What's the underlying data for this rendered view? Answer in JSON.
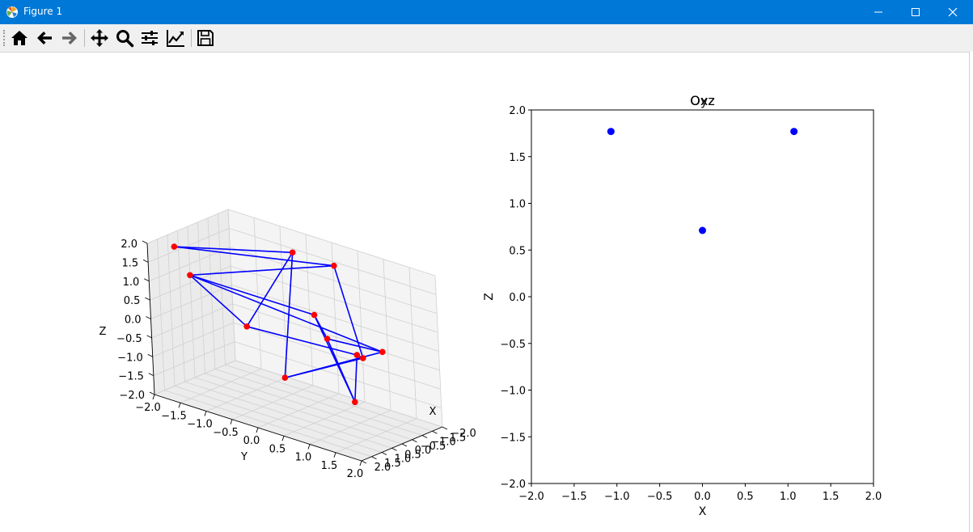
{
  "window": {
    "title": "Figure 1",
    "controls": [
      "minimize",
      "maximize",
      "close"
    ]
  },
  "toolbar": {
    "items": [
      {
        "name": "home",
        "icon": "home-icon"
      },
      {
        "name": "back",
        "icon": "arrow-left-icon"
      },
      {
        "name": "forward",
        "icon": "arrow-right-icon"
      },
      {
        "name": "pan",
        "icon": "move-icon"
      },
      {
        "name": "zoom",
        "icon": "magnifier-icon"
      },
      {
        "name": "configure-subplots",
        "icon": "sliders-icon"
      },
      {
        "name": "edit-axes",
        "icon": "line-chart-icon"
      },
      {
        "name": "save",
        "icon": "floppy-disk-icon"
      }
    ]
  },
  "colors": {
    "titlebar": "#0078d7",
    "points_3d": "#ff0000",
    "edges_3d": "#0000ff",
    "points_2d": "#0000ff",
    "pane": "#f2f2f2",
    "grid": "#d0d0d0"
  },
  "chart_data": [
    {
      "type": "line3d",
      "xlabel": "X",
      "ylabel": "Y",
      "zlabel": "Z",
      "xlim": [
        -2,
        2
      ],
      "ylim": [
        -2,
        2
      ],
      "zlim": [
        -2,
        2
      ],
      "x_ticks": [
        "−2.0",
        "−1.5",
        "−1.0",
        "−0.5",
        "0.0",
        "0.5",
        "1.0",
        "1.5",
        "2.0"
      ],
      "y_ticks": [
        "−2.0",
        "−1.5",
        "−1.0",
        "−0.5",
        "0.0",
        "0.5",
        "1.0",
        "1.5",
        "2.0"
      ],
      "z_ticks": [
        "−2.0",
        "−1.5",
        "−1.0",
        "−0.5",
        "0.0",
        "0.5",
        "1.0",
        "1.5",
        "2.0"
      ],
      "grid": true,
      "points": [
        [
          1.07,
          -1.85,
          1.77
        ],
        [
          0.0,
          -2.0,
          0.71
        ],
        [
          -1.07,
          -0.4,
          1.77
        ],
        [
          -1.07,
          0.4,
          1.77
        ],
        [
          0.0,
          0.4,
          0.71
        ],
        [
          1.07,
          -0.5,
          0.25
        ],
        [
          -1.07,
          0.2,
          -0.25
        ],
        [
          0.0,
          1.2,
          0.0
        ],
        [
          0.7,
          1.6,
          0.25
        ],
        [
          -0.5,
          1.5,
          0.1
        ],
        [
          0.7,
          1.4,
          -1.0
        ],
        [
          1.07,
          0.2,
          -0.8
        ]
      ],
      "edges": [
        [
          0,
          2
        ],
        [
          2,
          11
        ],
        [
          0,
          3
        ],
        [
          3,
          8
        ],
        [
          2,
          5
        ],
        [
          5,
          7
        ],
        [
          3,
          1
        ],
        [
          1,
          9
        ],
        [
          4,
          6
        ],
        [
          6,
          10
        ],
        [
          4,
          10
        ],
        [
          9,
          11
        ],
        [
          6,
          9
        ],
        [
          7,
          8
        ],
        [
          1,
          5
        ],
        [
          8,
          11
        ],
        [
          10,
          7
        ],
        [
          4,
          1
        ]
      ]
    },
    {
      "type": "scatter",
      "title": "Oxz",
      "title_overlay": "Oyz",
      "xlabel": "X",
      "ylabel": "Z",
      "xlim": [
        -2,
        2
      ],
      "ylim": [
        -2,
        2
      ],
      "x_ticks": [
        "−2.0",
        "−1.5",
        "−1.0",
        "−0.5",
        "0.0",
        "0.5",
        "1.0",
        "1.5",
        "2.0"
      ],
      "y_ticks": [
        "−2.0",
        "−1.5",
        "−1.0",
        "−0.5",
        "0.0",
        "0.5",
        "1.0",
        "1.5",
        "2.0"
      ],
      "grid": false,
      "x": [
        -1.07,
        1.07,
        0.0
      ],
      "y": [
        1.77,
        1.77,
        0.71
      ]
    }
  ]
}
